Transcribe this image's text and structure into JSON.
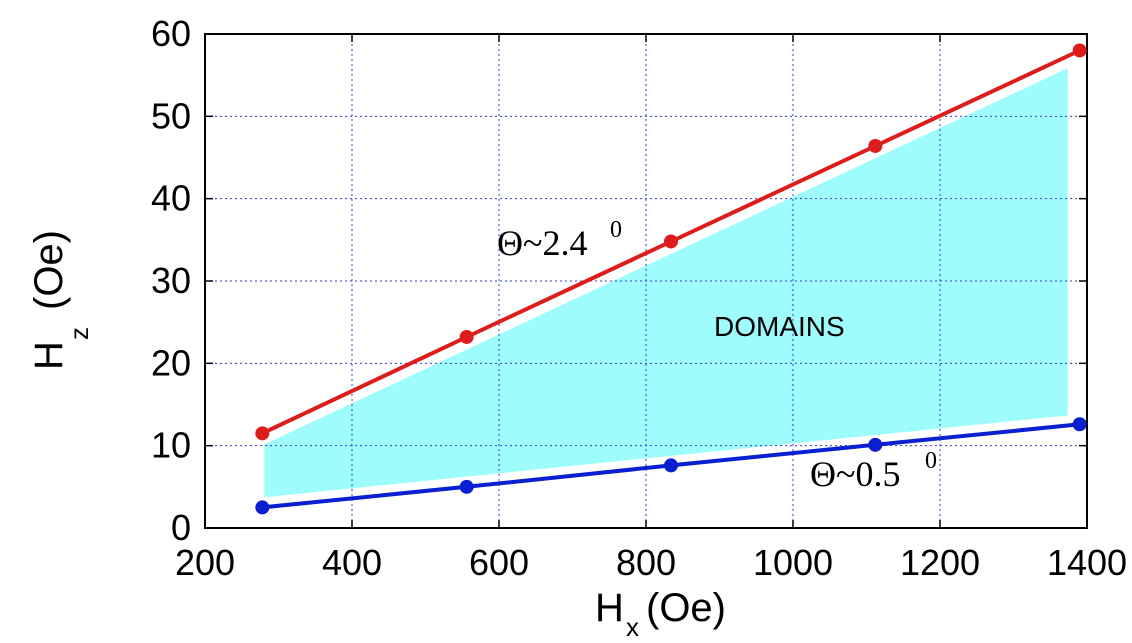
{
  "chart_data": {
    "type": "line",
    "title": "",
    "xlabel": {
      "main": "H",
      "sub": "x",
      "unit": "(Oe)"
    },
    "ylabel": {
      "main": "H",
      "sub": "z",
      "unit": "(Oe)"
    },
    "xlim": [
      200,
      1400
    ],
    "ylim": [
      0,
      60
    ],
    "xticks": [
      200,
      400,
      600,
      800,
      1000,
      1200,
      1400
    ],
    "yticks": [
      0,
      10,
      20,
      30,
      40,
      50,
      60
    ],
    "xtick_labels": [
      "200",
      "400",
      "600",
      "800",
      "1000",
      "1200",
      "1400"
    ],
    "ytick_labels": [
      "0",
      "10",
      "20",
      "30",
      "40",
      "50",
      "60"
    ],
    "grid": true,
    "legend": "none",
    "series": [
      {
        "name": "",
        "color": "#dd1c1c",
        "x": [
          278,
          556,
          834,
          1112,
          1390
        ],
        "y": [
          11.5,
          23.2,
          34.8,
          46.4,
          58.0
        ]
      },
      {
        "name": "",
        "color": "#0a1fd0",
        "x": [
          278,
          556,
          834,
          1112,
          1390
        ],
        "y": [
          2.5,
          5.0,
          7.6,
          10.1,
          12.6
        ]
      }
    ],
    "shaded_region": {
      "color": "#9ffcfc",
      "label": "DOMAINS",
      "upper_series": 0,
      "lower_series": 1
    },
    "annotations": [
      {
        "main": "Θ~2.4",
        "sup": "0"
      },
      {
        "main": "Θ~0.5",
        "sup": "0"
      }
    ]
  }
}
